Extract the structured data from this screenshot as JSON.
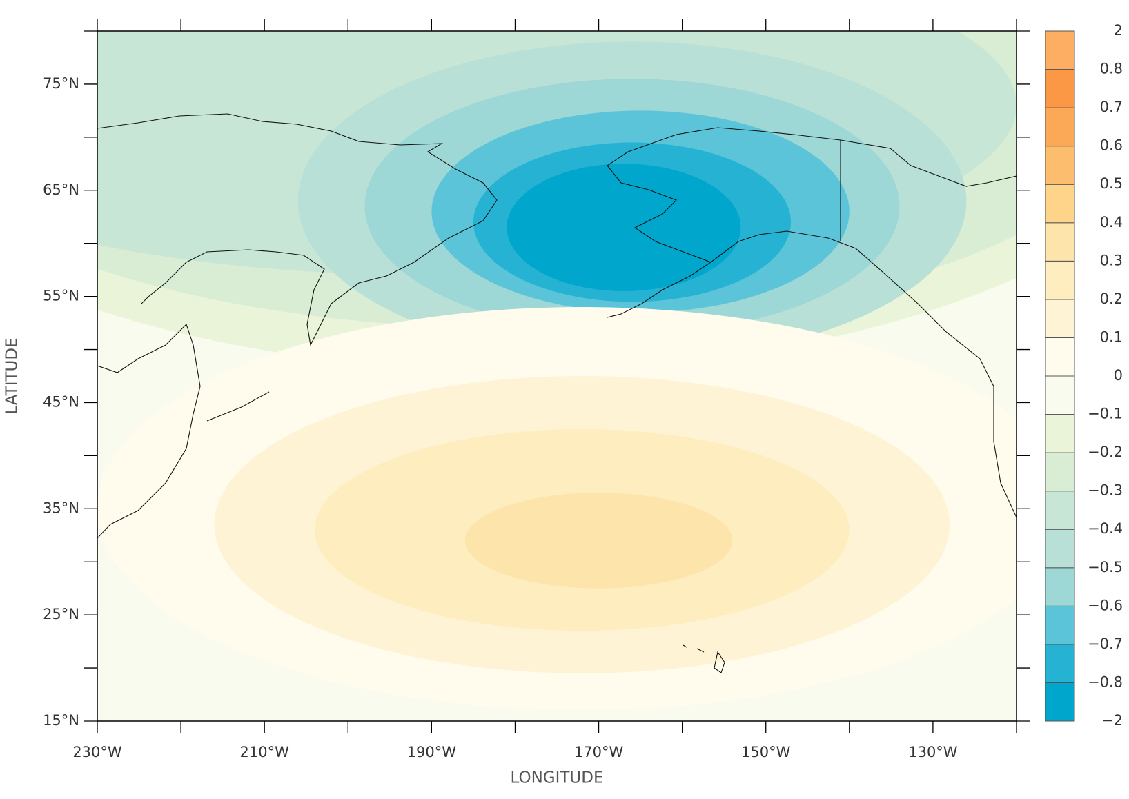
{
  "chart_data": {
    "type": "contour",
    "xlabel": "LONGITUDE",
    "ylabel": "LATITUDE",
    "xlim": [
      -230,
      -120
    ],
    "ylim": [
      15,
      80
    ],
    "xticks": [
      {
        "value": -230,
        "label": "230°W"
      },
      {
        "value": -210,
        "label": "210°W"
      },
      {
        "value": -190,
        "label": "190°W"
      },
      {
        "value": -170,
        "label": "170°W"
      },
      {
        "value": -150,
        "label": "150°W"
      },
      {
        "value": -130,
        "label": "130°W"
      }
    ],
    "xminorticks": [
      -220,
      -200,
      -180,
      -160,
      -140,
      -120
    ],
    "yticks": [
      {
        "value": 15,
        "label": "15°N"
      },
      {
        "value": 25,
        "label": "25°N"
      },
      {
        "value": 35,
        "label": "35°N"
      },
      {
        "value": 45,
        "label": "45°N"
      },
      {
        "value": 55,
        "label": "55°N"
      },
      {
        "value": 65,
        "label": "65°N"
      },
      {
        "value": 75,
        "label": "75°N"
      }
    ],
    "yminorticks": [
      20,
      30,
      40,
      50,
      60,
      70,
      80
    ],
    "colorbar": {
      "levels": [
        {
          "value": -2,
          "label": "−2"
        },
        {
          "value": -0.8,
          "label": "−0.8"
        },
        {
          "value": -0.7,
          "label": "−0.7"
        },
        {
          "value": -0.6,
          "label": "−0.6"
        },
        {
          "value": -0.5,
          "label": "−0.5"
        },
        {
          "value": -0.4,
          "label": "−0.4"
        },
        {
          "value": -0.3,
          "label": "−0.3"
        },
        {
          "value": -0.2,
          "label": "−0.2"
        },
        {
          "value": -0.1,
          "label": "−0.1"
        },
        0,
        0.1,
        0.2,
        0.3,
        0.4,
        0.5,
        0.6,
        0.7,
        0.8,
        2
      ],
      "colors": [
        "#00a6cb",
        "#26b3d3",
        "#5cc4d9",
        "#9dd7d6",
        "#b8e0d6",
        "#c8e6d6",
        "#d9edd5",
        "#eaf4d8",
        "#f8fbee",
        "#fffcee",
        "#fef4d5",
        "#feedbf",
        "#fde4ab",
        "#fdd48a",
        "#fdbd6e",
        "#fca957",
        "#fb9845",
        "#fdae62"
      ]
    }
  }
}
